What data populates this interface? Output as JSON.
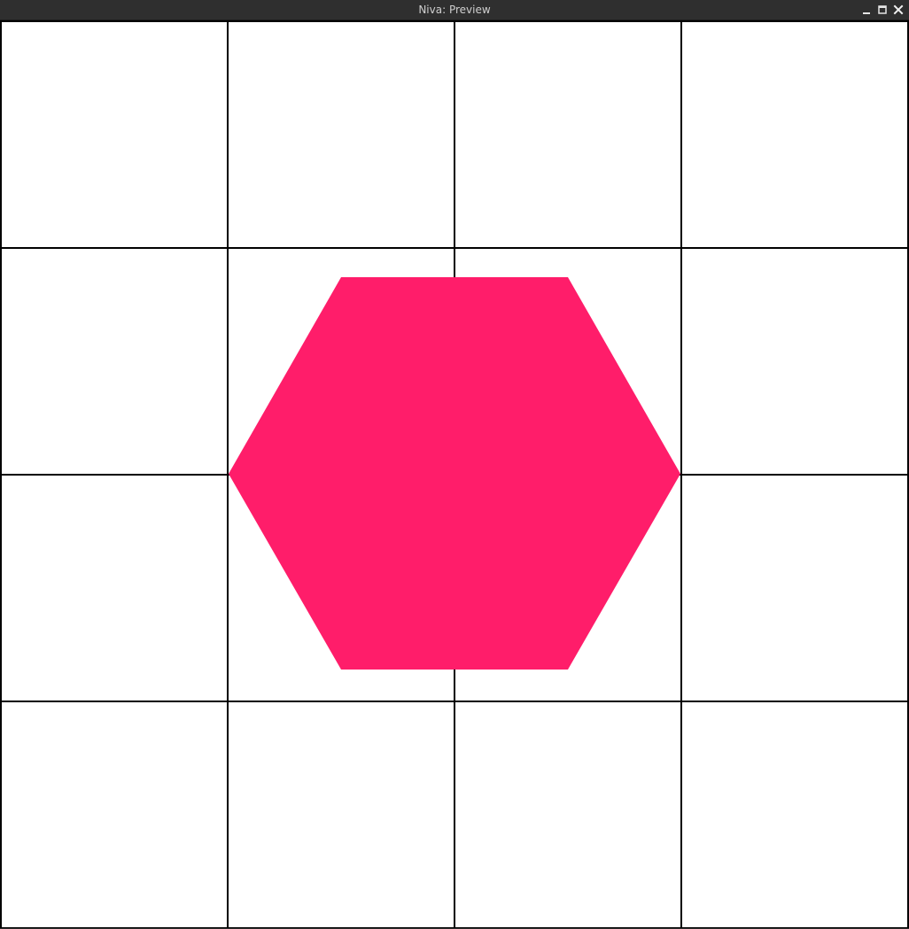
{
  "window": {
    "title": "Niva: Preview",
    "controls": {
      "minimize_icon": "minimize-icon",
      "maximize_icon": "maximize-icon",
      "close_icon": "close-icon"
    }
  },
  "preview": {
    "background": "#ffffff",
    "grid_color": "#000000",
    "grid_columns": 4,
    "grid_rows": 4,
    "shape": {
      "kind": "hexagon",
      "fill": "#ff1d6a"
    }
  }
}
